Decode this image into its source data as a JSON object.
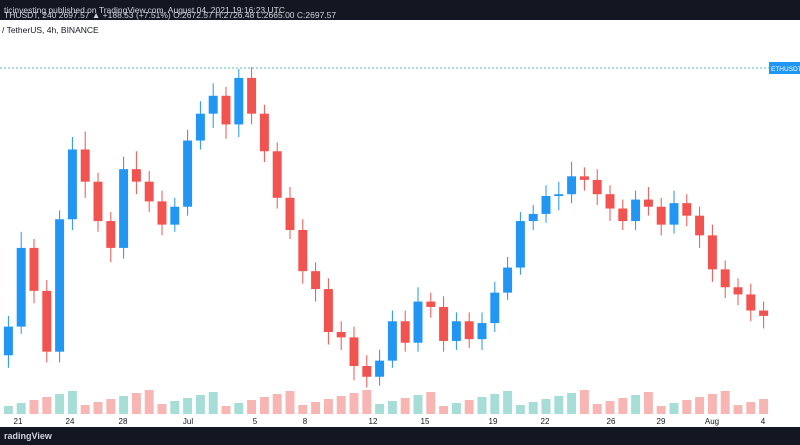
{
  "header": {
    "line": "ticinvesting published on TradingView.com, August 04, 2021 19:16:23 UTC",
    "ohlc": "THUSDT, 240  2697.57  ▲ +188.53 (+7.51%)  O:2672.57  H:2726.48  L:2665.00  C:2697.57"
  },
  "symbol_line": "/ TetherUS, 4h, BINANCE",
  "price_label": "ETHUSDT",
  "footer_logo": "radingView",
  "colors": {
    "up": "#26a69a",
    "down": "#ef5350",
    "line_up": "#2196f3",
    "line_down": "#f05350",
    "price_line": "#26a69a"
  },
  "chart_data": {
    "type": "candlestick",
    "x_ticks": [
      "21",
      "24",
      "28",
      "Jul",
      "5",
      "8",
      "12",
      "15",
      "19",
      "22",
      "26",
      "29",
      "Aug",
      "4"
    ],
    "series": [
      {
        "name": "ETHUSDT",
        "values": [
          [
            0,
            210,
            226,
            203,
            232
          ],
          [
            1,
            226,
            270,
            222,
            279
          ],
          [
            2,
            270,
            246,
            239,
            275
          ],
          [
            3,
            246,
            212,
            206,
            252
          ],
          [
            4,
            212,
            286,
            206,
            291
          ],
          [
            5,
            286,
            325,
            280,
            332
          ],
          [
            6,
            325,
            307,
            298,
            335
          ],
          [
            7,
            307,
            285,
            279,
            312
          ],
          [
            8,
            285,
            270,
            262,
            290
          ],
          [
            9,
            270,
            314,
            264,
            321
          ],
          [
            10,
            314,
            307,
            300,
            324
          ],
          [
            11,
            307,
            296,
            290,
            313
          ],
          [
            12,
            296,
            283,
            277,
            302
          ],
          [
            13,
            283,
            293,
            279,
            298
          ],
          [
            14,
            293,
            330,
            288,
            336
          ],
          [
            15,
            330,
            345,
            325,
            352
          ],
          [
            16,
            345,
            355,
            337,
            362
          ],
          [
            17,
            355,
            339,
            331,
            360
          ],
          [
            18,
            339,
            365,
            332,
            370
          ],
          [
            19,
            365,
            345,
            339,
            371
          ],
          [
            20,
            345,
            324,
            318,
            350
          ],
          [
            21,
            324,
            298,
            292,
            329
          ],
          [
            22,
            298,
            280,
            275,
            304
          ],
          [
            23,
            280,
            257,
            250,
            286
          ],
          [
            24,
            257,
            247,
            240,
            262
          ],
          [
            25,
            247,
            223,
            216,
            253
          ],
          [
            26,
            223,
            220,
            213,
            229
          ],
          [
            27,
            220,
            204,
            196,
            226
          ],
          [
            28,
            204,
            198,
            192,
            210
          ],
          [
            29,
            198,
            207,
            193,
            213
          ],
          [
            30,
            207,
            229,
            203,
            235
          ],
          [
            31,
            229,
            217,
            212,
            235
          ],
          [
            32,
            217,
            240,
            212,
            248
          ],
          [
            33,
            240,
            237,
            231,
            245
          ],
          [
            34,
            237,
            218,
            212,
            243
          ],
          [
            35,
            218,
            229,
            213,
            234
          ],
          [
            36,
            229,
            219,
            214,
            234
          ],
          [
            37,
            219,
            228,
            213,
            234
          ],
          [
            38,
            228,
            245,
            223,
            251
          ],
          [
            39,
            245,
            259,
            241,
            265
          ],
          [
            40,
            259,
            285,
            255,
            290
          ],
          [
            41,
            285,
            289,
            280,
            294
          ],
          [
            42,
            289,
            299,
            284,
            305
          ],
          [
            43,
            299,
            300,
            291,
            307
          ],
          [
            44,
            300,
            310,
            295,
            318
          ],
          [
            45,
            310,
            308,
            302,
            315
          ],
          [
            46,
            308,
            300,
            294,
            314
          ],
          [
            47,
            300,
            292,
            285,
            305
          ],
          [
            48,
            292,
            285,
            280,
            297
          ],
          [
            49,
            285,
            297,
            280,
            302
          ],
          [
            50,
            297,
            293,
            288,
            304
          ],
          [
            51,
            293,
            283,
            277,
            298
          ],
          [
            52,
            283,
            295,
            278,
            302
          ],
          [
            53,
            295,
            288,
            282,
            300
          ],
          [
            54,
            288,
            277,
            270,
            293
          ],
          [
            55,
            277,
            258,
            251,
            283
          ],
          [
            56,
            258,
            248,
            242,
            263
          ],
          [
            57,
            248,
            244,
            238,
            253
          ],
          [
            58,
            244,
            235,
            229,
            250
          ],
          [
            59,
            235,
            232,
            225,
            240
          ]
        ]
      }
    ],
    "ylim": [
      185,
      375
    ],
    "grid": false,
    "legend": "none"
  }
}
